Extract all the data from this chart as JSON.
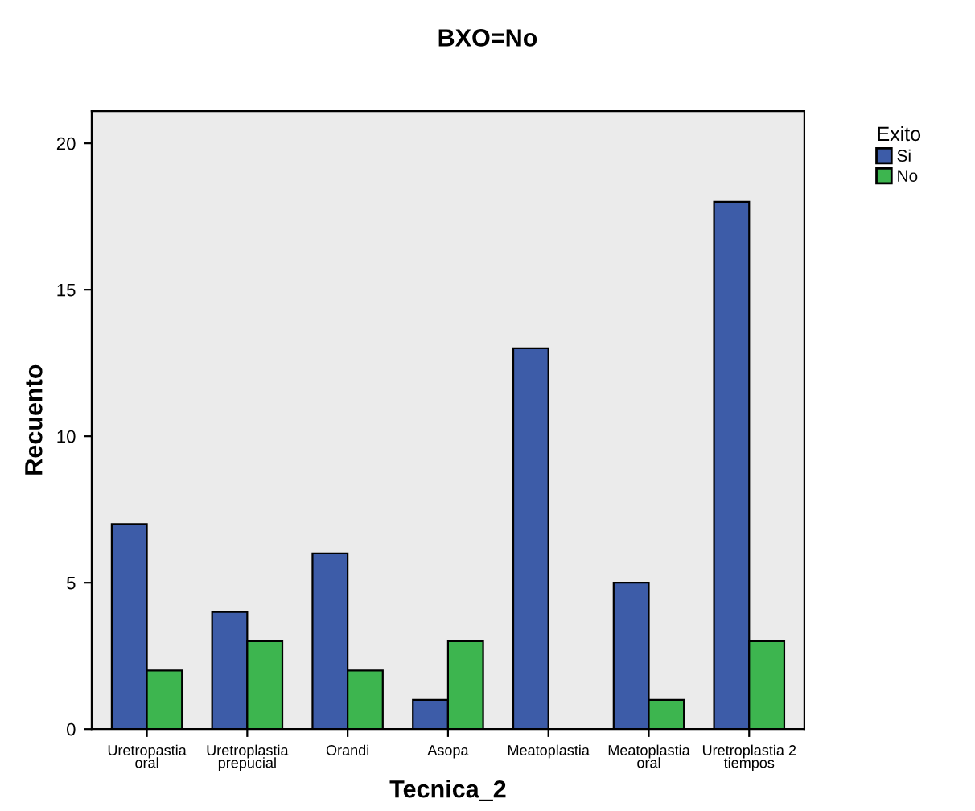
{
  "chart_data": {
    "type": "bar",
    "title": "BXO=No",
    "xlabel": "Tecnica_2",
    "ylabel": "Recuento",
    "legend_title": "Exito",
    "categories": [
      "Uretropastia oral",
      "Uretroplastia prepucial",
      "Orandi",
      "Asopa",
      "Meatoplastia",
      "Meatoplastia oral",
      "Uretroplastia 2 tiempos"
    ],
    "series": [
      {
        "name": "Si",
        "color": "#3d5ca8",
        "values": [
          7,
          4,
          6,
          1,
          13,
          5,
          18
        ]
      },
      {
        "name": "No",
        "color": "#3db54f",
        "values": [
          2,
          3,
          2,
          3,
          null,
          1,
          3
        ]
      }
    ],
    "ylim": [
      0,
      21.1
    ],
    "yticks": [
      0,
      5,
      10,
      15,
      20
    ],
    "grid": false,
    "legend": "top right"
  }
}
